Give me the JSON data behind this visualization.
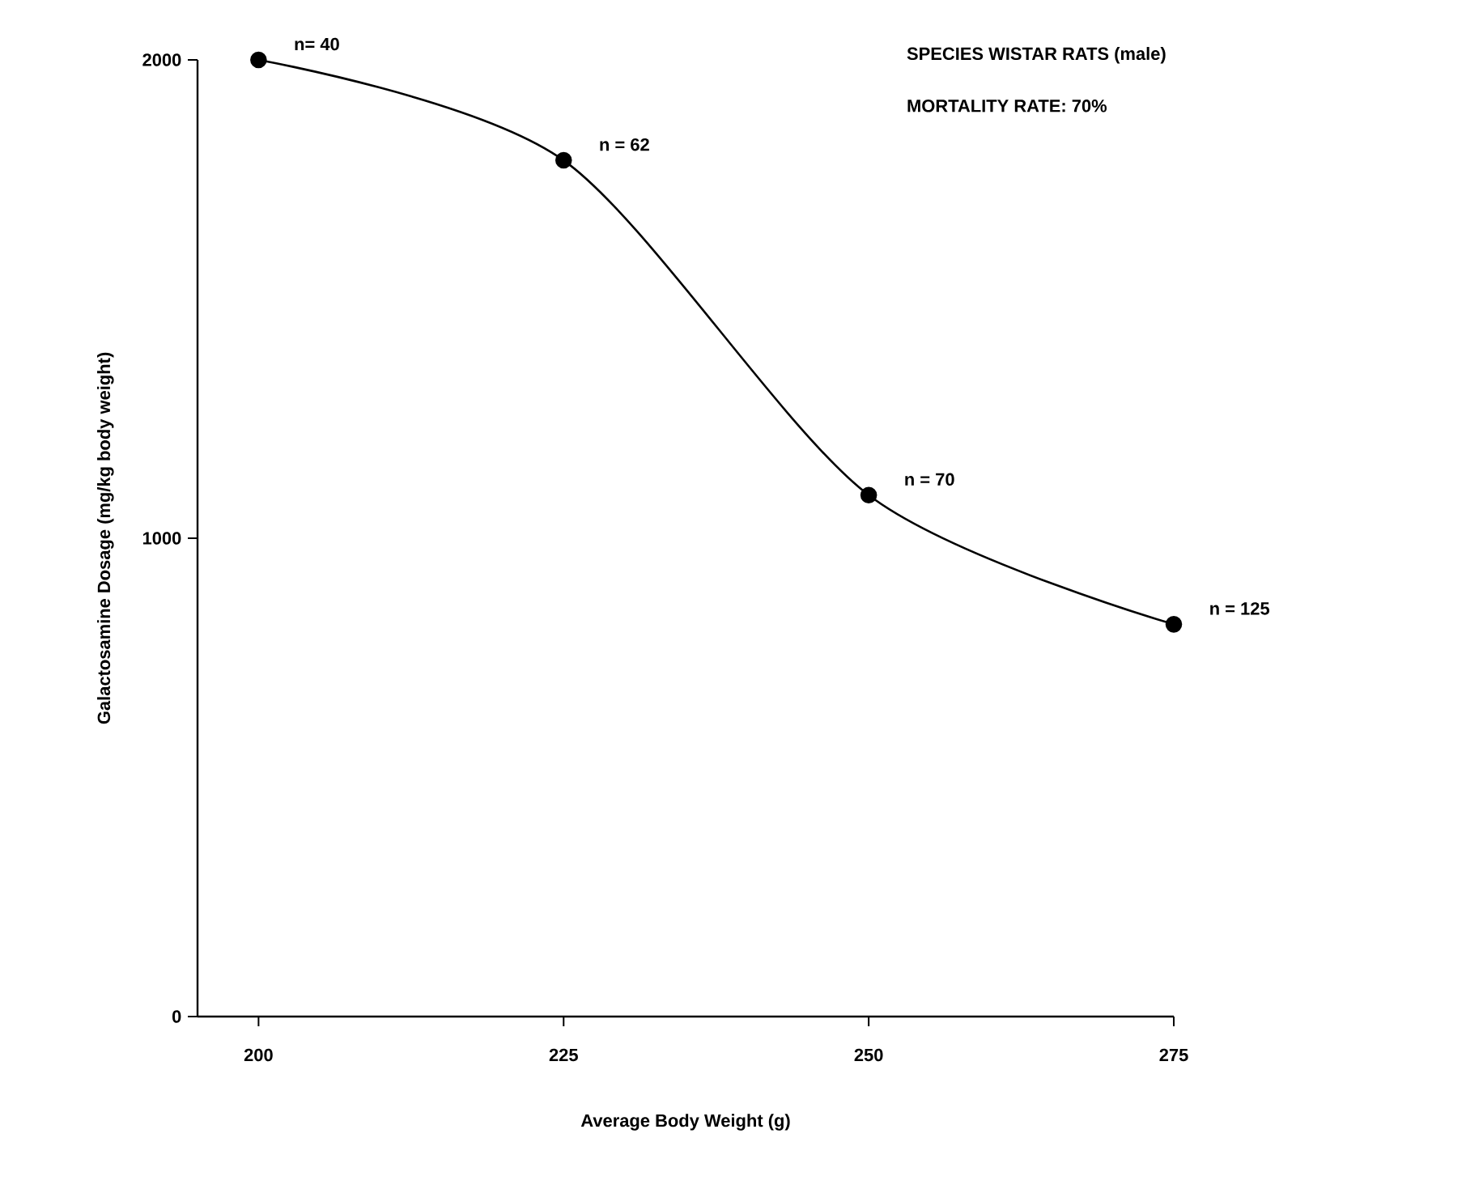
{
  "chart_data": {
    "type": "line",
    "xlabel": "Average  Body Weight (g)",
    "ylabel": "Galactosamine Dosage (mg/kg body weight)",
    "x": [
      200,
      225,
      250,
      275
    ],
    "values": [
      2000,
      1790,
      1090,
      820
    ],
    "color": "#000000",
    "marker": "circle",
    "line_style": "solid",
    "xlim": [
      195,
      275
    ],
    "ylim": [
      0,
      2000
    ],
    "xticks": [
      200,
      225,
      250,
      275
    ],
    "yticks": [
      0,
      1000,
      2000
    ],
    "annotations": [
      "SPECIES   WISTAR RATS (male)",
      "MORTALITY RATE: 70%",
      {
        "text": "n= 40",
        "x": 200,
        "y": 2000
      },
      {
        "text": "n = 62",
        "x": 225,
        "y": 1790
      },
      {
        "text": "n = 70",
        "x": 250,
        "y": 1090
      },
      {
        "text": "n = 125",
        "x": 275,
        "y": 820
      }
    ]
  }
}
